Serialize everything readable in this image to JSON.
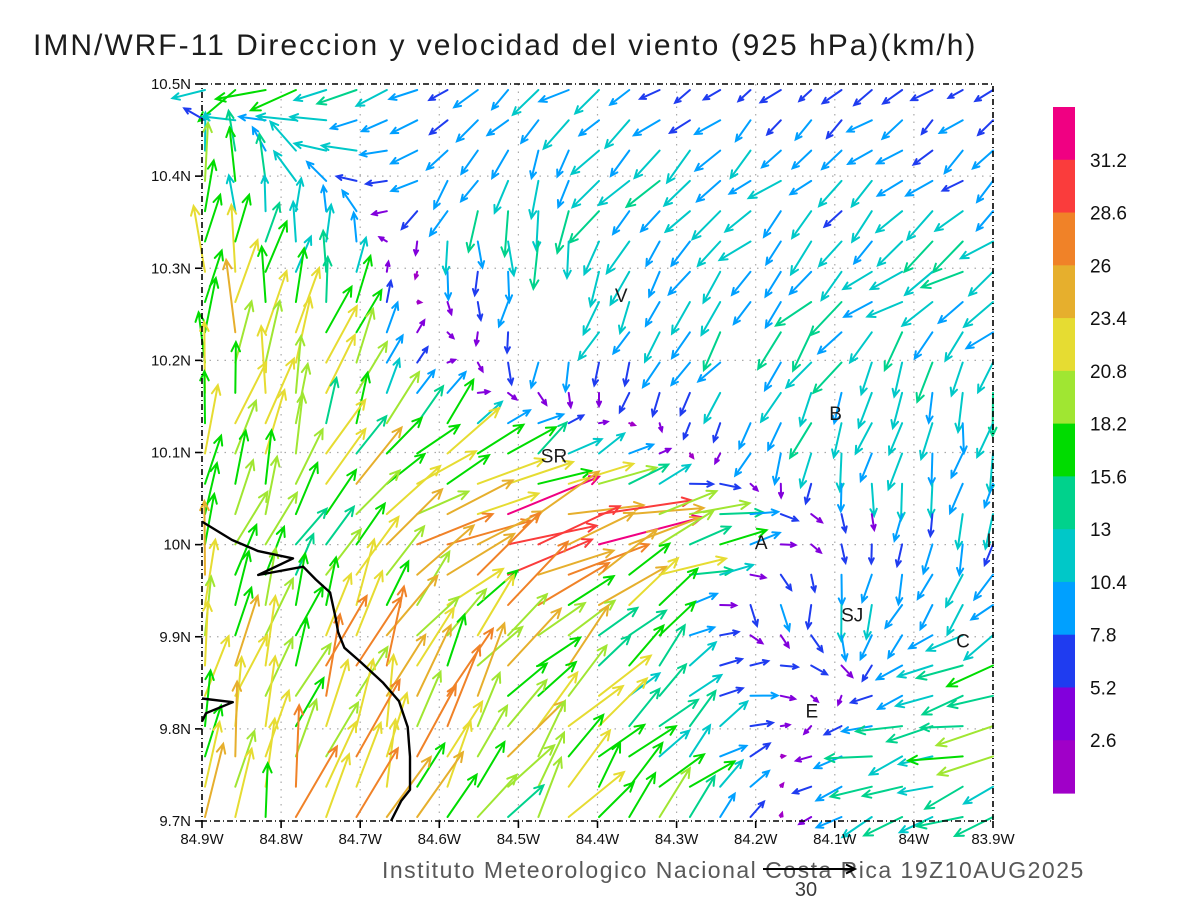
{
  "title": "IMN/WRF-11 Direccion y velocidad del viento (925 hPa)(km/h)",
  "footer": {
    "credit": "Instituto Meteorologico Nacional Costa Rica 19Z10AUG2025",
    "ref_value": "30"
  },
  "chart_data": {
    "type": "vector_field",
    "title": "IMN/WRF-11 Direccion y velocidad del viento (925 hPa)(km/h)",
    "units": "km/h",
    "level": "925 hPa",
    "lon_range": [
      -84.9,
      -83.9
    ],
    "lat_range": [
      9.7,
      10.5
    ],
    "grid": true,
    "x_ticks": [
      {
        "lon": -84.9,
        "label": "84.9W"
      },
      {
        "lon": -84.8,
        "label": "84.8W"
      },
      {
        "lon": -84.7,
        "label": "84.7W"
      },
      {
        "lon": -84.6,
        "label": "84.6W"
      },
      {
        "lon": -84.5,
        "label": "84.5W"
      },
      {
        "lon": -84.4,
        "label": "84.4W"
      },
      {
        "lon": -84.3,
        "label": "84.3W"
      },
      {
        "lon": -84.2,
        "label": "84.2W"
      },
      {
        "lon": -84.1,
        "label": "84.1W"
      },
      {
        "lon": -84.0,
        "label": "84W"
      },
      {
        "lon": -83.9,
        "label": "83.9W"
      }
    ],
    "y_ticks": [
      {
        "lat": 10.5,
        "label": "10.5N"
      },
      {
        "lat": 10.4,
        "label": "10.4N"
      },
      {
        "lat": 10.3,
        "label": "10.3N"
      },
      {
        "lat": 10.2,
        "label": "10.2N"
      },
      {
        "lat": 10.1,
        "label": "10.1N"
      },
      {
        "lat": 10.0,
        "label": "10N"
      },
      {
        "lat": 9.9,
        "label": "9.9N"
      },
      {
        "lat": 9.8,
        "label": "9.8N"
      },
      {
        "lat": 9.7,
        "label": "9.7N"
      }
    ],
    "colorbar": {
      "levels": [
        2.6,
        5.2,
        7.8,
        10.4,
        13,
        15.6,
        18.2,
        20.8,
        23.4,
        26,
        28.6,
        31.2
      ],
      "labels_top_to_bottom": [
        "31.2",
        "28.6",
        "26",
        "23.4",
        "20.8",
        "18.2",
        "15.6",
        "13",
        "10.4",
        "7.8",
        "5.2",
        "2.6"
      ],
      "colors_low_to_high": [
        "#a000c8",
        "#8200dc",
        "#1f3cf0",
        "#00a0ff",
        "#00c8c8",
        "#00d28c",
        "#00dc00",
        "#a0e632",
        "#e6dc32",
        "#e6af2d",
        "#f08228",
        "#fa3c3c",
        "#f00082"
      ]
    },
    "reference_arrow": {
      "value": 30,
      "label": "30",
      "units": "km/h"
    },
    "city_labels": [
      {
        "label": "V",
        "lon": -84.37,
        "lat": 10.271
      },
      {
        "label": "B",
        "lon": -84.099,
        "lat": 10.143
      },
      {
        "label": "SR",
        "lon": -84.455,
        "lat": 10.097
      },
      {
        "label": "A",
        "lon": -84.193,
        "lat": 10.003
      },
      {
        "label": "SJ",
        "lon": -84.078,
        "lat": 9.924
      },
      {
        "label": "C",
        "lon": -83.938,
        "lat": 9.896
      },
      {
        "label": "E",
        "lon": -84.129,
        "lat": 9.82
      },
      {
        "label": "I",
        "lon": -83.905,
        "lat": 10.005
      }
    ],
    "masked_regions": [
      {
        "lon_min": -84.492,
        "lon_max": -84.423,
        "lat_min": 10.213,
        "lat_max": 10.322
      },
      {
        "lon_min": -84.22,
        "lon_max": -84.17,
        "lat_min": 10.155,
        "lat_max": 10.25
      }
    ],
    "coastline": [
      [
        [
          -84.9,
          10.025
        ],
        [
          -84.862,
          10.005
        ],
        [
          -84.829,
          9.993
        ],
        [
          -84.785,
          9.985
        ],
        [
          -84.829,
          9.967
        ],
        [
          -84.772,
          9.976
        ],
        [
          -84.756,
          9.962
        ],
        [
          -84.738,
          9.948
        ],
        [
          -84.731,
          9.92
        ],
        [
          -84.728,
          9.905
        ],
        [
          -84.72,
          9.888
        ],
        [
          -84.7,
          9.873
        ],
        [
          -84.671,
          9.85
        ],
        [
          -84.651,
          9.83
        ],
        [
          -84.64,
          9.802
        ],
        [
          -84.637,
          9.77
        ],
        [
          -84.637,
          9.734
        ],
        [
          -84.648,
          9.722
        ],
        [
          -84.661,
          9.7
        ]
      ],
      [
        [
          -84.9,
          9.833
        ],
        [
          -84.861,
          9.829
        ],
        [
          -84.895,
          9.817
        ],
        [
          -84.9,
          9.808
        ]
      ]
    ],
    "wind_grid": {
      "units": "km/h",
      "lons": [
        -84.9,
        -84.8,
        -84.7,
        -84.6,
        -84.5,
        -84.4,
        -84.3,
        -84.2,
        -84.1,
        -84.0,
        -83.9
      ],
      "lats": [
        10.5,
        10.42,
        10.34,
        10.26,
        10.18,
        10.1,
        10.02,
        9.94,
        9.86,
        9.78,
        9.7
      ],
      "uv": [
        [
          [
            -13,
            -9
          ],
          [
            -14,
            -7
          ],
          [
            -12,
            -5
          ],
          [
            -6,
            -4
          ],
          [
            -8,
            -5
          ],
          [
            -8,
            -4
          ],
          [
            -7,
            -3
          ],
          [
            -5,
            -4
          ],
          [
            -5,
            -3
          ],
          [
            -5,
            -4
          ],
          [
            -5,
            -3
          ]
        ],
        [
          [
            -2,
            15
          ],
          [
            -6,
            10
          ],
          [
            -10,
            2
          ],
          [
            -8,
            -6
          ],
          [
            -4,
            -11
          ],
          [
            -7,
            -9
          ],
          [
            -8,
            -7
          ],
          [
            -7,
            -6
          ],
          [
            -6,
            -6
          ],
          [
            -6,
            -5
          ],
          [
            -6,
            -5
          ]
        ],
        [
          [
            1,
            16
          ],
          [
            2,
            14
          ],
          [
            -3,
            6
          ],
          [
            -2,
            -10
          ],
          [
            0,
            -13
          ],
          [
            -5,
            -11
          ],
          [
            -7,
            -9
          ],
          [
            -8,
            -8
          ],
          [
            -7,
            -7
          ],
          [
            -8,
            -7
          ],
          [
            -9,
            -6
          ]
        ],
        [
          [
            2,
            19
          ],
          [
            3,
            18
          ],
          [
            3,
            12
          ],
          [
            1,
            -4
          ],
          [
            -2,
            -10
          ],
          [
            -5,
            -10
          ],
          [
            -6,
            -9
          ],
          [
            -8,
            -8
          ],
          [
            -9,
            -8
          ],
          [
            -10,
            -7
          ],
          [
            -10,
            -6
          ]
        ],
        [
          [
            2,
            20
          ],
          [
            4,
            19
          ],
          [
            6,
            15
          ],
          [
            4,
            4
          ],
          [
            0,
            -6
          ],
          [
            -3,
            -8
          ],
          [
            -5,
            -8
          ],
          [
            -7,
            -8
          ],
          [
            -4,
            -10
          ],
          [
            -2,
            -12
          ],
          [
            -3,
            -11
          ]
        ],
        [
          [
            3,
            18
          ],
          [
            6,
            17
          ],
          [
            10,
            16
          ],
          [
            14,
            14
          ],
          [
            12,
            10
          ],
          [
            8,
            6
          ],
          [
            2,
            0
          ],
          [
            -4,
            -8
          ],
          [
            -3,
            -11
          ],
          [
            -1,
            -12
          ],
          [
            -3,
            -10
          ]
        ],
        [
          [
            4,
            17
          ],
          [
            8,
            15
          ],
          [
            14,
            13
          ],
          [
            20,
            11
          ],
          [
            28,
            10
          ],
          [
            30,
            11
          ],
          [
            20,
            5
          ],
          [
            10,
            3
          ],
          [
            2,
            -3
          ],
          [
            -1,
            -8
          ],
          [
            -2,
            -9
          ]
        ],
        [
          [
            5,
            19
          ],
          [
            7,
            17
          ],
          [
            10,
            16
          ],
          [
            15,
            14
          ],
          [
            20,
            12
          ],
          [
            18,
            10
          ],
          [
            12,
            6
          ],
          [
            2,
            -6
          ],
          [
            -2,
            -10
          ],
          [
            -4,
            -10
          ],
          [
            -6,
            -8
          ]
        ],
        [
          [
            5,
            20
          ],
          [
            7,
            19
          ],
          [
            7,
            20
          ],
          [
            10,
            20
          ],
          [
            14,
            15
          ],
          [
            12,
            12
          ],
          [
            8,
            8
          ],
          [
            8,
            1
          ],
          [
            4,
            -3
          ],
          [
            -12,
            -2
          ],
          [
            -14,
            -3
          ]
        ],
        [
          [
            4,
            20
          ],
          [
            6,
            20
          ],
          [
            6,
            22
          ],
          [
            8,
            21
          ],
          [
            12,
            17
          ],
          [
            12,
            14
          ],
          [
            10,
            10
          ],
          [
            6,
            2
          ],
          [
            -10,
            -4
          ],
          [
            -13,
            -3
          ],
          [
            -15,
            -4
          ]
        ],
        [
          [
            4,
            20
          ],
          [
            6,
            20
          ],
          [
            7,
            19
          ],
          [
            9,
            18
          ],
          [
            11,
            16
          ],
          [
            12,
            14
          ],
          [
            11,
            11
          ],
          [
            4,
            4
          ],
          [
            -8,
            -5
          ],
          [
            -12,
            -4
          ],
          [
            -10,
            -6
          ]
        ]
      ]
    }
  }
}
